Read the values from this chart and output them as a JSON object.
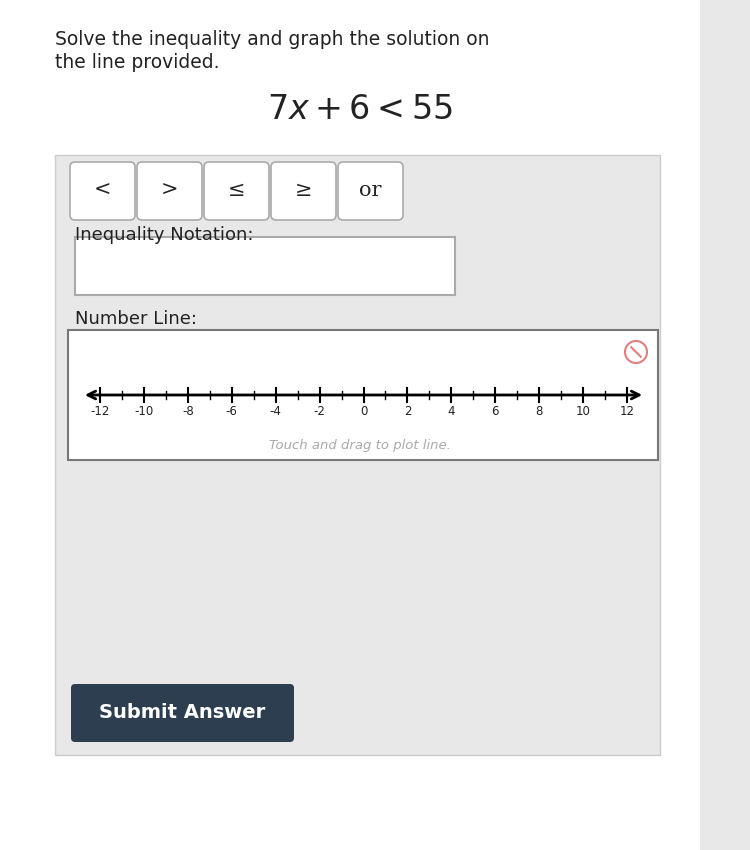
{
  "title_line1": "Solve the inequality and graph the solution on",
  "title_line2": "the line provided.",
  "buttons": [
    "<",
    ">",
    "≤",
    "≥",
    "or"
  ],
  "inequality_label": "Inequality Notation:",
  "number_line_label": "Number Line:",
  "touch_drag_text": "Touch and drag to plot line.",
  "submit_text": "Submit Answer",
  "page_bg": "#e8e8e8",
  "white": "#ffffff",
  "dark_btn_color": "#2d3e50",
  "text_color": "#222222",
  "light_gray": "#e8e8e8",
  "number_line_ticks": [
    -12,
    -10,
    -8,
    -6,
    -4,
    -2,
    0,
    2,
    4,
    6,
    8,
    10,
    12
  ],
  "title_fontsize": 13.5,
  "label_fontsize": 13,
  "button_fontsize": 15,
  "submit_fontsize": 14
}
